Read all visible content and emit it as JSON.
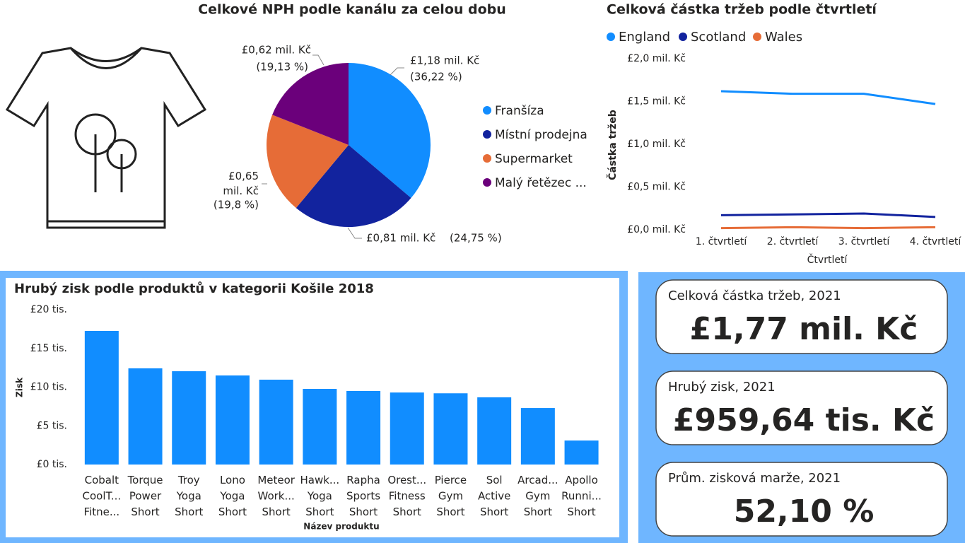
{
  "chart_data": [
    {
      "type": "pie",
      "title": "Celkové NPH podle kanálu za celou dobu",
      "categories": [
        "Franšíza",
        "Místní prodejna",
        "Supermarket",
        "Malý řetězec ..."
      ],
      "values": [
        1.18,
        0.81,
        0.65,
        0.62
      ],
      "value_labels": [
        "£1,18 mil. Kč",
        "£0,81 mil. Kč",
        "£0,65 mil. Kč",
        "£0,62 mil. Kč"
      ],
      "percents": [
        36.22,
        24.75,
        19.8,
        19.13
      ],
      "percent_labels": [
        "(36,22 %)",
        "(24,75 %)",
        "(19,8 %)",
        "(19,13 %)"
      ],
      "colors": [
        "#118DFF",
        "#12239E",
        "#E66C37",
        "#6B007B"
      ],
      "legend": "right"
    },
    {
      "type": "line",
      "title": "Celková částka tržeb podle čtvrtletí",
      "x_label": "Čtvrtletí",
      "y_label": "Částka tržeb",
      "categories": [
        "1. čtvrtletí",
        "2. čtvrtletí",
        "3. čtvrtletí",
        "4. čtvrtletí"
      ],
      "series": [
        {
          "name": "England",
          "color": "#118DFF",
          "values": [
            1.62,
            1.59,
            1.59,
            1.47
          ]
        },
        {
          "name": "Scotland",
          "color": "#12239E",
          "values": [
            0.17,
            0.18,
            0.19,
            0.15
          ]
        },
        {
          "name": "Wales",
          "color": "#E66C37",
          "values": [
            0.02,
            0.03,
            0.02,
            0.03
          ]
        }
      ],
      "ylim": [
        0,
        2
      ],
      "yticks": [
        {
          "value": 0,
          "label": "£0,0 mil. Kč"
        },
        {
          "value": 0.5,
          "label": "£0,5 mil. Kč"
        },
        {
          "value": 1,
          "label": "£1,0 mil. Kč"
        },
        {
          "value": 1.5,
          "label": "£1,5 mil. Kč"
        },
        {
          "value": 2,
          "label": "£2,0 mil. Kč"
        }
      ],
      "legend": "top-left",
      "grid": false
    },
    {
      "type": "bar",
      "title": "Hrubý zisk podle produktů v kategorii Košile 2018",
      "x_label": "Název produktu",
      "y_label": "Zisk",
      "categories": [
        "Cobalt CoolT... Fitne...",
        "Torque Power Short",
        "Troy Yoga Short",
        "Lono Yoga Short",
        "Meteor Work... Short",
        "Hawk... Yoga Short",
        "Rapha Sports Short",
        "Orest... Fitness Short",
        "Pierce Gym Short",
        "Sol Active Short",
        "Arcad... Gym Short",
        "Apollo Runni... Short"
      ],
      "values": [
        17.26,
        12.42,
        12.05,
        11.5,
        10.96,
        9.77,
        9.5,
        9.3,
        9.2,
        8.68,
        7.3,
        3.1
      ],
      "color": "#118DFF",
      "ylim": [
        0,
        20
      ],
      "yticks": [
        {
          "value": 0,
          "label": "£0 tis."
        },
        {
          "value": 5,
          "label": "£5 tis."
        },
        {
          "value": 10,
          "label": "£10 tis."
        },
        {
          "value": 15,
          "label": "£15 tis."
        },
        {
          "value": 20,
          "label": "£20 tis."
        }
      ],
      "grid": false
    }
  ],
  "cards": [
    {
      "label": "Celková částka tržeb, 2021",
      "value": "£1,77 mil. Kč"
    },
    {
      "label": "Hrubý zisk, 2021",
      "value": "£959,64 tis. Kč"
    },
    {
      "label": "Prům. zisková marže, 2021",
      "value": "52,10 %"
    }
  ]
}
